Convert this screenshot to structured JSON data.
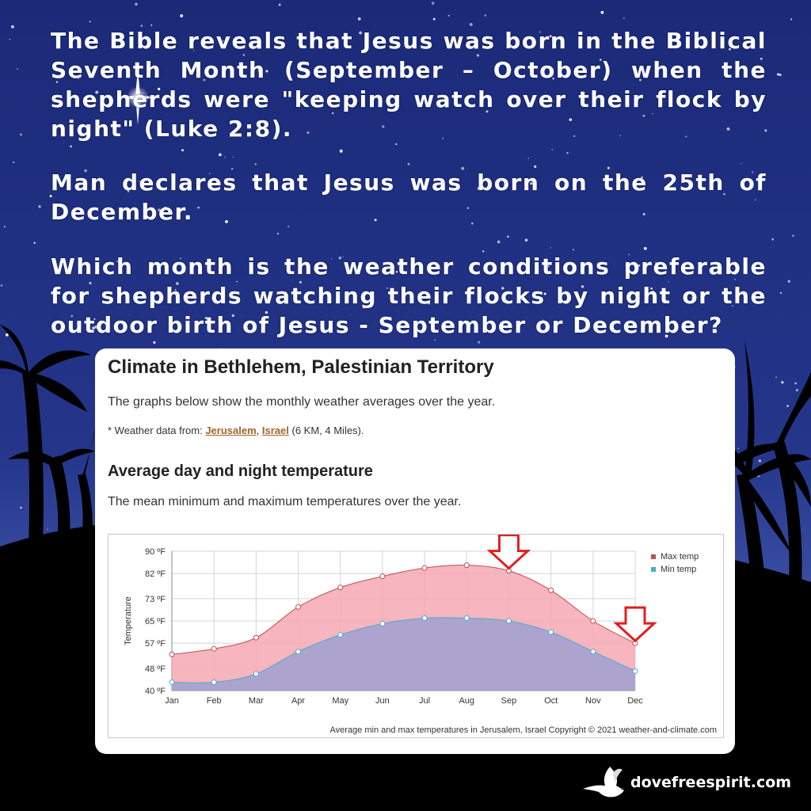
{
  "headline": {
    "p1": "The Bible reveals that Jesus was born in the Biblical Seventh Month (September – October) when the shepherds were \"keeping watch over their flock by night\" (Luke 2:8).",
    "p2": "Man declares that Jesus was born on the 25th of December.",
    "p3": "Which month is the weather conditions preferable for shepherds watching their flocks by night or the outdoor birth of Jesus - September or December?"
  },
  "card": {
    "title": "Climate in Bethlehem, Palestinian Territory",
    "description": "The graphs below show the monthly weather averages over the year.",
    "note_prefix": "* Weather data from: ",
    "link_city": "Jerusalem",
    "separator": ", ",
    "link_country": "Israel",
    "note_suffix": " (6 KM, 4 Miles).",
    "section_title": "Average day and night temperature",
    "section_desc": "The mean minimum and maximum temperatures over the year."
  },
  "footer": {
    "site": "dovefreespirit.com",
    "logo_icon": "dove-icon"
  },
  "colors": {
    "sky_top": "#1e2d7c",
    "sky_bottom": "#4a61b8",
    "max_fill": "#f4a8b4",
    "max_line": "#c0504d",
    "min_fill": "#a8a3d0",
    "min_line": "#4bacc6",
    "arrow": "#e02020"
  },
  "chart_data": {
    "type": "area",
    "categories": [
      "Jan",
      "Feb",
      "Mar",
      "Apr",
      "May",
      "Jun",
      "Jul",
      "Aug",
      "Sep",
      "Oct",
      "Nov",
      "Dec"
    ],
    "series": [
      {
        "name": "Max temp",
        "values": [
          53,
          55,
          59,
          70,
          77,
          81,
          84,
          85,
          83,
          76,
          65,
          57
        ]
      },
      {
        "name": "Min temp",
        "values": [
          43,
          43,
          46,
          54,
          60,
          64,
          66,
          66,
          65,
          61,
          54,
          47
        ]
      }
    ],
    "yticks": [
      "40 ºF",
      "48 ºF",
      "57 ºF",
      "65 ºF",
      "73 ºF",
      "82 ºF",
      "90 ºF"
    ],
    "ylim": [
      40,
      90
    ],
    "ylabel": "Temperature",
    "xlabel": "",
    "legend_position": "top-right",
    "grid": true,
    "footer": "Average min and max temperatures in Jerusalem, Israel   Copyright © 2021  weather-and-climate.com",
    "annotations": [
      {
        "type": "arrow-down",
        "month": "Sep"
      },
      {
        "type": "arrow-down",
        "month": "Dec"
      }
    ]
  }
}
